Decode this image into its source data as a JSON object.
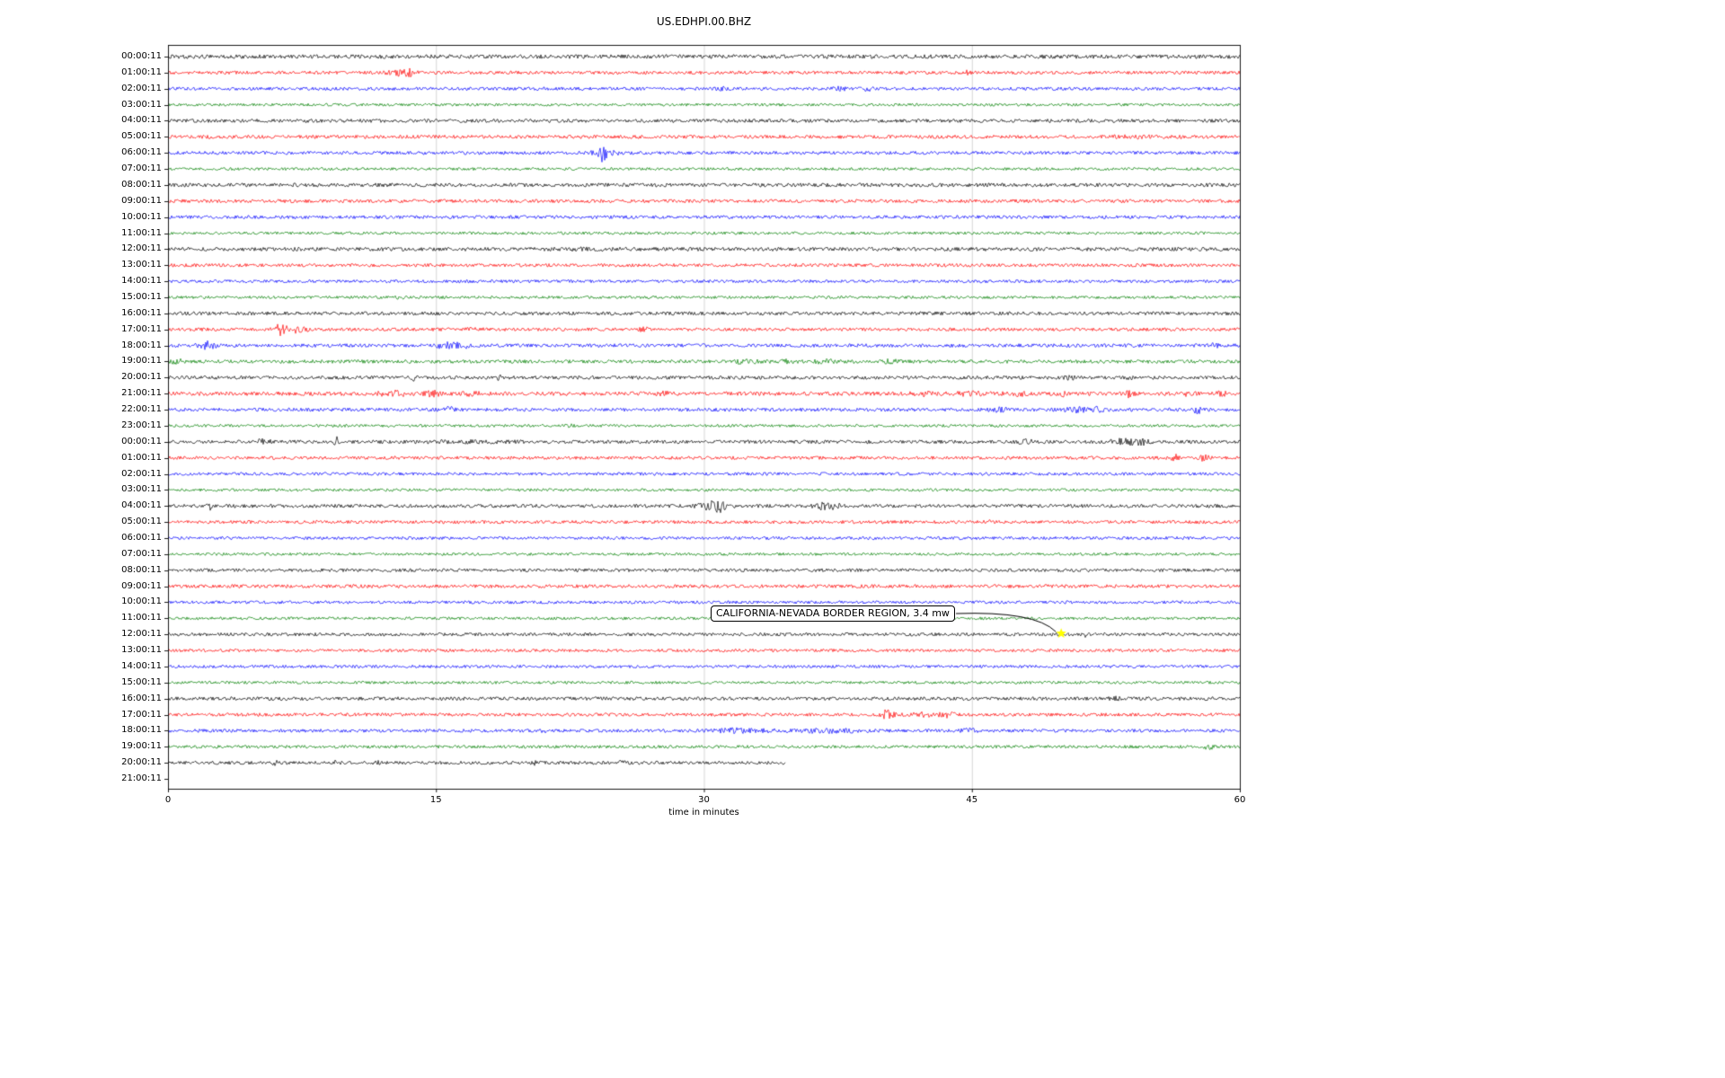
{
  "chart_data": {
    "type": "line",
    "subtype": "helicorder-seismogram",
    "title": "US.EDHPI.00.BHZ",
    "xlabel": "time in minutes",
    "ylabel": "",
    "xlim": [
      0,
      60
    ],
    "xticks": [
      0,
      15,
      30,
      45,
      60
    ],
    "grid": "vertical-light-gray",
    "legend": "none",
    "trace_color_cycle": [
      "#000000",
      "#ff0000",
      "#0000ff",
      "#008000"
    ],
    "annotation": {
      "text": "CALIFORNIA-NEVADA BORDER REGION, 3.4 mw",
      "target_row_label": "12:00:11",
      "target_row_index": 36,
      "target_x_minutes": 50,
      "marker": "star",
      "marker_color": "#ffff00"
    },
    "rows": [
      {
        "label": "00:00:11",
        "color": "#000000",
        "amp": 1.7,
        "events": []
      },
      {
        "label": "01:00:11",
        "color": "#ff0000",
        "amp": 1.4,
        "events": [
          {
            "x": 12.9,
            "w": 0.4,
            "a": 2.6
          },
          {
            "x": 13.6,
            "w": 0.2,
            "a": 1.8
          },
          {
            "x": 44.6,
            "w": 0.15,
            "a": 1.5
          }
        ]
      },
      {
        "label": "02:00:11",
        "color": "#0000ff",
        "amp": 1.4,
        "events": [
          {
            "x": 31.0,
            "w": 0.2,
            "a": 0.8
          },
          {
            "x": 37.6,
            "w": 0.3,
            "a": 1.2
          },
          {
            "x": 39.2,
            "w": 0.15,
            "a": 1.5
          }
        ]
      },
      {
        "label": "03:00:11",
        "color": "#008000",
        "amp": 1.2,
        "events": []
      },
      {
        "label": "04:00:11",
        "color": "#000000",
        "amp": 1.5,
        "events": []
      },
      {
        "label": "05:00:11",
        "color": "#ff0000",
        "amp": 1.5,
        "events": [
          {
            "x": 54.0,
            "w": 1.5,
            "a": 0.5
          }
        ]
      },
      {
        "label": "06:00:11",
        "color": "#0000ff",
        "amp": 1.4,
        "events": [
          {
            "x": 24.4,
            "w": 0.12,
            "a": 7.5
          },
          {
            "x": 24.0,
            "w": 0.3,
            "a": 2.0
          },
          {
            "x": 25.0,
            "w": 0.4,
            "a": 1.2
          }
        ]
      },
      {
        "label": "07:00:11",
        "color": "#008000",
        "amp": 1.2,
        "events": []
      },
      {
        "label": "08:00:11",
        "color": "#000000",
        "amp": 1.6,
        "events": []
      },
      {
        "label": "09:00:11",
        "color": "#ff0000",
        "amp": 1.5,
        "events": []
      },
      {
        "label": "10:00:11",
        "color": "#0000ff",
        "amp": 1.4,
        "events": []
      },
      {
        "label": "11:00:11",
        "color": "#008000",
        "amp": 1.2,
        "events": []
      },
      {
        "label": "12:00:11",
        "color": "#000000",
        "amp": 1.6,
        "events": [
          {
            "x": 24.0,
            "w": 2.0,
            "a": 0.4
          }
        ]
      },
      {
        "label": "13:00:11",
        "color": "#ff0000",
        "amp": 1.4,
        "events": []
      },
      {
        "label": "14:00:11",
        "color": "#0000ff",
        "amp": 1.3,
        "events": []
      },
      {
        "label": "15:00:11",
        "color": "#008000",
        "amp": 1.2,
        "events": [
          {
            "x": 13.0,
            "w": 0.2,
            "a": 0.8
          }
        ]
      },
      {
        "label": "16:00:11",
        "color": "#000000",
        "amp": 1.5,
        "events": []
      },
      {
        "label": "17:00:11",
        "color": "#ff0000",
        "amp": 1.4,
        "events": [
          {
            "x": 6.3,
            "w": 0.25,
            "a": 4.5
          },
          {
            "x": 7.3,
            "w": 0.3,
            "a": 2.5
          },
          {
            "x": 17.2,
            "w": 0.3,
            "a": 1.2
          },
          {
            "x": 26.6,
            "w": 0.25,
            "a": 1.5
          }
        ]
      },
      {
        "label": "18:00:11",
        "color": "#0000ff",
        "amp": 1.5,
        "events": [
          {
            "x": 2.2,
            "w": 0.3,
            "a": 2.8
          },
          {
            "x": 15.6,
            "w": 0.4,
            "a": 2.2
          },
          {
            "x": 16.5,
            "w": 0.3,
            "a": 1.8
          },
          {
            "x": 58.5,
            "w": 0.3,
            "a": 1.2
          }
        ]
      },
      {
        "label": "19:00:11",
        "color": "#008000",
        "amp": 1.5,
        "events": [
          {
            "x": 0.5,
            "w": 0.3,
            "a": 1.5
          },
          {
            "x": 32.2,
            "w": 0.6,
            "a": 1.2
          },
          {
            "x": 34.5,
            "w": 0.3,
            "a": 1.0
          },
          {
            "x": 36.8,
            "w": 0.4,
            "a": 1.3
          },
          {
            "x": 40.5,
            "w": 0.25,
            "a": 2.0
          }
        ]
      },
      {
        "label": "20:00:11",
        "color": "#000000",
        "amp": 1.5,
        "events": [
          {
            "x": 13.7,
            "w": 0.1,
            "a": 2.2
          },
          {
            "x": 18.5,
            "w": 0.1,
            "a": 2.0
          },
          {
            "x": 50.5,
            "w": 0.3,
            "a": 1.0
          },
          {
            "x": 54.0,
            "w": 0.2,
            "a": 0.8
          }
        ]
      },
      {
        "label": "21:00:11",
        "color": "#ff0000",
        "amp": 1.7,
        "events": [
          {
            "x": 12.6,
            "w": 0.5,
            "a": 2.2
          },
          {
            "x": 14.8,
            "w": 0.3,
            "a": 1.8
          },
          {
            "x": 17.0,
            "w": 0.3,
            "a": 1.2
          },
          {
            "x": 27.9,
            "w": 0.2,
            "a": 2.4
          },
          {
            "x": 42.5,
            "w": 0.5,
            "a": 1.2
          },
          {
            "x": 45.0,
            "w": 0.5,
            "a": 1.4
          },
          {
            "x": 47.5,
            "w": 0.4,
            "a": 1.5
          },
          {
            "x": 50.0,
            "w": 0.2,
            "a": 1.8
          },
          {
            "x": 53.8,
            "w": 0.15,
            "a": 2.8
          },
          {
            "x": 57.0,
            "w": 0.3,
            "a": 1.2
          },
          {
            "x": 59.0,
            "w": 0.2,
            "a": 1.5
          }
        ]
      },
      {
        "label": "22:00:11",
        "color": "#0000ff",
        "amp": 1.5,
        "events": [
          {
            "x": 15.7,
            "w": 0.2,
            "a": 1.8
          },
          {
            "x": 46.5,
            "w": 0.4,
            "a": 1.2
          },
          {
            "x": 51.0,
            "w": 0.5,
            "a": 1.6
          },
          {
            "x": 52.0,
            "w": 0.3,
            "a": 1.4
          },
          {
            "x": 57.6,
            "w": 0.1,
            "a": 5.5
          }
        ]
      },
      {
        "label": "23:00:11",
        "color": "#008000",
        "amp": 1.2,
        "events": [
          {
            "x": 22.5,
            "w": 0.3,
            "a": 0.8
          }
        ]
      },
      {
        "label": "00:00:11",
        "color": "#000000",
        "amp": 1.5,
        "events": [
          {
            "x": 5.4,
            "w": 0.3,
            "a": 1.6
          },
          {
            "x": 9.4,
            "w": 0.08,
            "a": 4.0
          },
          {
            "x": 17.0,
            "w": 1.5,
            "a": 0.5
          },
          {
            "x": 48.0,
            "w": 0.3,
            "a": 1.6
          },
          {
            "x": 53.5,
            "w": 0.5,
            "a": 2.0
          },
          {
            "x": 54.5,
            "w": 0.3,
            "a": 1.8
          }
        ]
      },
      {
        "label": "01:00:11",
        "color": "#ff0000",
        "amp": 1.4,
        "events": [
          {
            "x": 56.3,
            "w": 0.2,
            "a": 2.8
          },
          {
            "x": 57.9,
            "w": 0.25,
            "a": 2.2
          }
        ]
      },
      {
        "label": "02:00:11",
        "color": "#0000ff",
        "amp": 1.3,
        "events": []
      },
      {
        "label": "03:00:11",
        "color": "#008000",
        "amp": 1.2,
        "events": []
      },
      {
        "label": "04:00:11",
        "color": "#000000",
        "amp": 1.5,
        "events": [
          {
            "x": 2.3,
            "w": 0.08,
            "a": 3.2
          },
          {
            "x": 30.2,
            "w": 0.4,
            "a": 2.0
          },
          {
            "x": 30.8,
            "w": 0.3,
            "a": 4.5
          },
          {
            "x": 36.6,
            "w": 0.3,
            "a": 2.2
          },
          {
            "x": 37.3,
            "w": 0.2,
            "a": 2.5
          }
        ]
      },
      {
        "label": "05:00:11",
        "color": "#ff0000",
        "amp": 1.4,
        "events": [
          {
            "x": 46.0,
            "w": 0.2,
            "a": 1.2
          }
        ]
      },
      {
        "label": "06:00:11",
        "color": "#0000ff",
        "amp": 1.3,
        "events": []
      },
      {
        "label": "07:00:11",
        "color": "#008000",
        "amp": 1.2,
        "events": []
      },
      {
        "label": "08:00:11",
        "color": "#000000",
        "amp": 1.4,
        "events": []
      },
      {
        "label": "09:00:11",
        "color": "#ff0000",
        "amp": 1.5,
        "events": []
      },
      {
        "label": "10:00:11",
        "color": "#0000ff",
        "amp": 1.3,
        "events": []
      },
      {
        "label": "11:00:11",
        "color": "#008000",
        "amp": 1.2,
        "events": []
      },
      {
        "label": "12:00:11",
        "color": "#000000",
        "amp": 1.4,
        "events": [
          {
            "x": 51.3,
            "w": 0.12,
            "a": 2.2
          }
        ]
      },
      {
        "label": "13:00:11",
        "color": "#ff0000",
        "amp": 1.3,
        "events": []
      },
      {
        "label": "14:00:11",
        "color": "#0000ff",
        "amp": 1.3,
        "events": []
      },
      {
        "label": "15:00:11",
        "color": "#008000",
        "amp": 1.2,
        "events": []
      },
      {
        "label": "16:00:11",
        "color": "#000000",
        "amp": 1.5,
        "events": [
          {
            "x": 53.0,
            "w": 0.2,
            "a": 0.9
          }
        ]
      },
      {
        "label": "17:00:11",
        "color": "#ff0000",
        "amp": 1.4,
        "events": [
          {
            "x": 40.3,
            "w": 0.25,
            "a": 3.8
          },
          {
            "x": 42.1,
            "w": 0.4,
            "a": 2.2
          },
          {
            "x": 43.6,
            "w": 0.3,
            "a": 1.8
          }
        ]
      },
      {
        "label": "18:00:11",
        "color": "#0000ff",
        "amp": 1.4,
        "events": [
          {
            "x": 21.0,
            "w": 0.2,
            "a": 0.8
          },
          {
            "x": 31.5,
            "w": 0.5,
            "a": 1.5
          },
          {
            "x": 33.0,
            "w": 1.0,
            "a": 0.8
          },
          {
            "x": 36.5,
            "w": 0.6,
            "a": 1.2
          },
          {
            "x": 38.0,
            "w": 1.0,
            "a": 0.7
          },
          {
            "x": 44.8,
            "w": 0.3,
            "a": 1.2
          }
        ]
      },
      {
        "label": "19:00:11",
        "color": "#008000",
        "amp": 1.3,
        "events": [
          {
            "x": 58.3,
            "w": 0.2,
            "a": 2.2
          }
        ]
      },
      {
        "label": "20:00:11",
        "color": "#000000",
        "amp": 1.4,
        "extent": [
          0,
          34.6
        ],
        "events": [
          {
            "x": 6.0,
            "w": 0.15,
            "a": 1.8
          },
          {
            "x": 9.4,
            "w": 0.1,
            "a": 1.6
          },
          {
            "x": 11.8,
            "w": 0.15,
            "a": 1.4
          },
          {
            "x": 20.5,
            "w": 0.2,
            "a": 1.0
          },
          {
            "x": 25.3,
            "w": 0.15,
            "a": 1.8
          }
        ]
      },
      {
        "label": "21:00:11",
        "color": null,
        "amp": 0,
        "empty": true,
        "events": []
      }
    ]
  }
}
